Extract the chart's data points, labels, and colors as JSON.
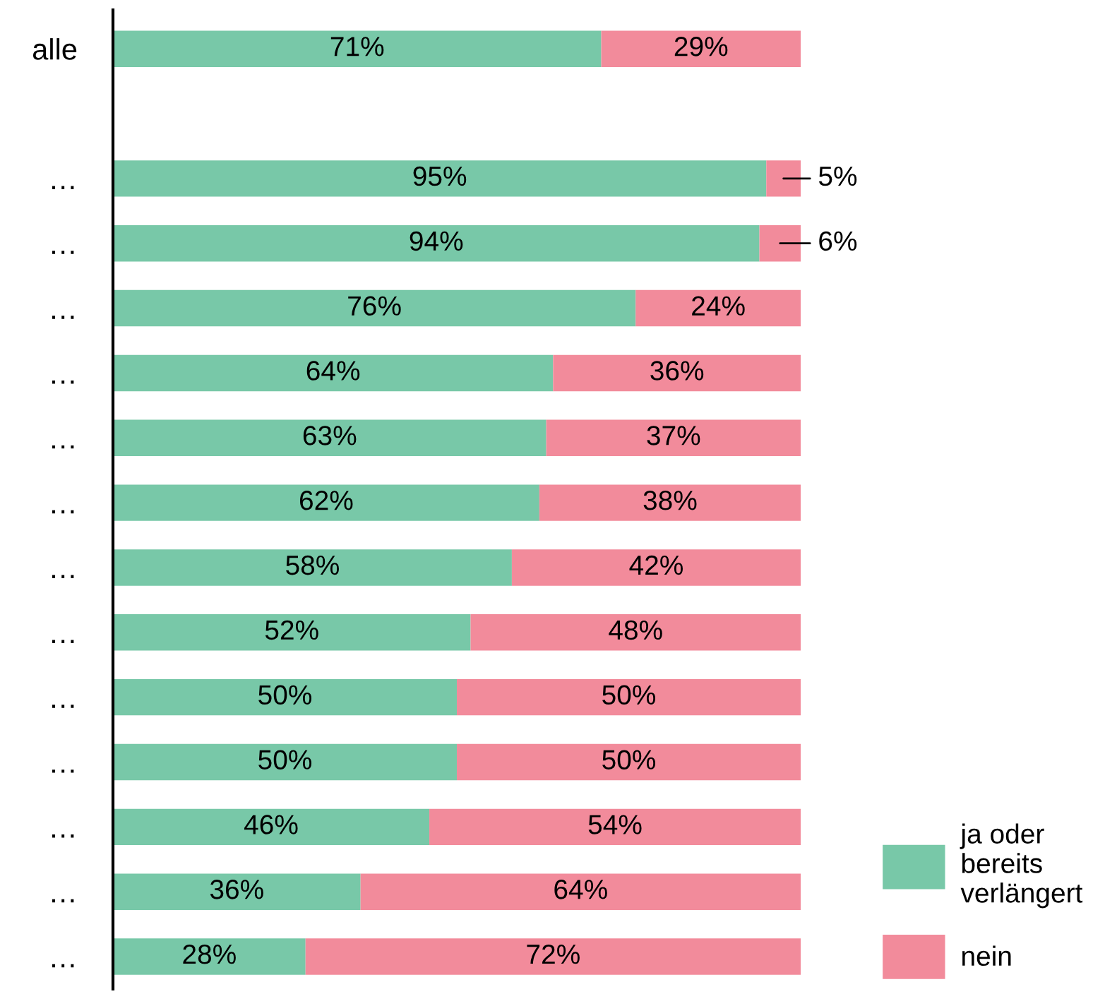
{
  "chart_data": {
    "type": "bar",
    "orientation": "horizontal",
    "stacked": true,
    "tick_labels": "y",
    "grid": false,
    "legend": "bottom right",
    "categories": [
      "alle",
      null,
      "…",
      "…",
      "…",
      "…",
      "…",
      "…",
      "…",
      "…",
      "…",
      "…",
      "…",
      "…",
      "…"
    ],
    "series": [
      {
        "name": "ja oder\nbereits\nverlängert",
        "color": "#78c8a8",
        "values": [
          71,
          null,
          95,
          94,
          76,
          64,
          63,
          62,
          58,
          52,
          50,
          50,
          46,
          36,
          28
        ],
        "value_labels": [
          "71%",
          null,
          "95%",
          "94%",
          "76%",
          "64%",
          "63%",
          "62%",
          "58%",
          "52%",
          "50%",
          "50%",
          "46%",
          "36%",
          "28%"
        ]
      },
      {
        "name": "nein",
        "color": "#f28b9b",
        "values": [
          29,
          null,
          5,
          6,
          24,
          36,
          37,
          38,
          42,
          48,
          50,
          50,
          54,
          64,
          72
        ],
        "value_labels": [
          "29%",
          null,
          "5%",
          "6%",
          "24%",
          "36%",
          "37%",
          "38%",
          "42%",
          "48%",
          "50%",
          "50%",
          "54%",
          "64%",
          "72%"
        ]
      }
    ]
  }
}
